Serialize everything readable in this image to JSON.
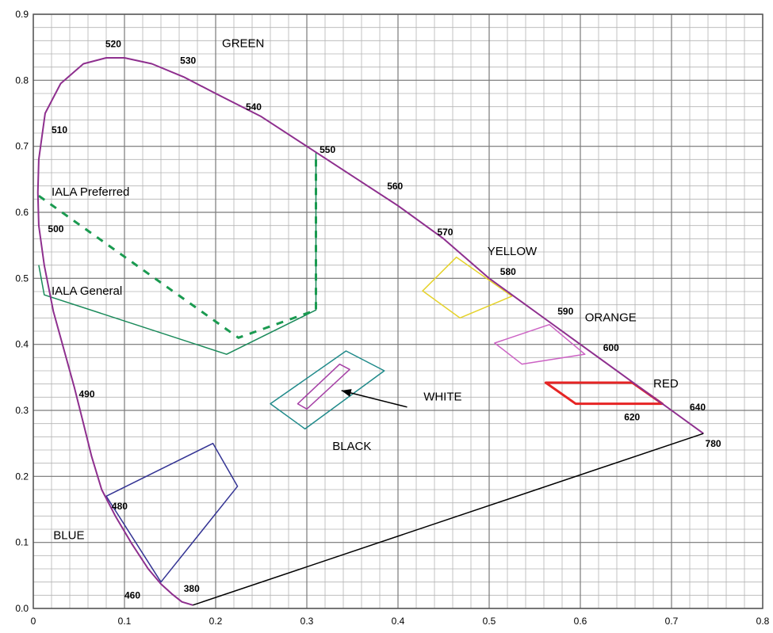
{
  "chart_data": {
    "type": "scatter",
    "title": "",
    "xlabel": "",
    "ylabel": "",
    "xlim": [
      0,
      0.8
    ],
    "ylim": [
      0,
      0.9
    ],
    "grid": true,
    "x_major_ticks": [
      {
        "value": 0,
        "label": "0"
      },
      {
        "value": 0.1,
        "label": "0.1"
      },
      {
        "value": 0.2,
        "label": "0.2"
      },
      {
        "value": 0.3,
        "label": "0.3"
      },
      {
        "value": 0.4,
        "label": "0.4"
      },
      {
        "value": 0.5,
        "label": "0.5"
      },
      {
        "value": 0.6,
        "label": "0.6"
      },
      {
        "value": 0.7,
        "label": "0.7"
      },
      {
        "value": 0.8,
        "label": "0.8"
      }
    ],
    "y_major_ticks": [
      {
        "value": 0,
        "label": "0.0"
      },
      {
        "value": 0.1,
        "label": "0.1"
      },
      {
        "value": 0.2,
        "label": "0.2"
      },
      {
        "value": 0.3,
        "label": "0.3"
      },
      {
        "value": 0.4,
        "label": "0.4"
      },
      {
        "value": 0.5,
        "label": "0.5"
      },
      {
        "value": 0.6,
        "label": "0.6"
      },
      {
        "value": 0.7,
        "label": "0.7"
      },
      {
        "value": 0.8,
        "label": "0.8"
      },
      {
        "value": 0.9,
        "label": "0.9"
      }
    ],
    "minor_step": 0.02,
    "spectral_locus": {
      "color": "#8e2f8e",
      "points": [
        [
          0.175,
          0.005
        ],
        [
          0.163,
          0.01
        ],
        [
          0.152,
          0.022
        ],
        [
          0.14,
          0.037
        ],
        [
          0.126,
          0.06
        ],
        [
          0.108,
          0.098
        ],
        [
          0.09,
          0.14
        ],
        [
          0.075,
          0.18
        ],
        [
          0.064,
          0.23
        ],
        [
          0.055,
          0.28
        ],
        [
          0.045,
          0.335
        ],
        [
          0.034,
          0.39
        ],
        [
          0.022,
          0.45
        ],
        [
          0.012,
          0.52
        ],
        [
          0.006,
          0.58
        ],
        [
          0.005,
          0.63
        ],
        [
          0.006,
          0.68
        ],
        [
          0.013,
          0.75
        ],
        [
          0.03,
          0.795
        ],
        [
          0.055,
          0.825
        ],
        [
          0.08,
          0.834
        ],
        [
          0.1,
          0.834
        ],
        [
          0.13,
          0.825
        ],
        [
          0.165,
          0.805
        ],
        [
          0.2,
          0.78
        ],
        [
          0.25,
          0.745
        ],
        [
          0.3,
          0.7
        ],
        [
          0.35,
          0.655
        ],
        [
          0.4,
          0.61
        ],
        [
          0.45,
          0.56
        ],
        [
          0.5,
          0.5
        ],
        [
          0.55,
          0.45
        ],
        [
          0.6,
          0.4
        ],
        [
          0.65,
          0.35
        ],
        [
          0.7,
          0.3
        ],
        [
          0.735,
          0.265
        ]
      ]
    },
    "purple_line": {
      "color": "#000000",
      "points": [
        [
          0.175,
          0.005
        ],
        [
          0.735,
          0.265
        ]
      ]
    },
    "wavelength_labels": [
      {
        "text": "380",
        "x": 0.165,
        "y": 0.025
      },
      {
        "text": "460",
        "x": 0.1,
        "y": 0.015
      },
      {
        "text": "480",
        "x": 0.086,
        "y": 0.15
      },
      {
        "text": "490",
        "x": 0.05,
        "y": 0.32
      },
      {
        "text": "500",
        "x": 0.016,
        "y": 0.57
      },
      {
        "text": "510",
        "x": 0.02,
        "y": 0.72
      },
      {
        "text": "520",
        "x": 0.079,
        "y": 0.85
      },
      {
        "text": "530",
        "x": 0.161,
        "y": 0.825
      },
      {
        "text": "540",
        "x": 0.233,
        "y": 0.755
      },
      {
        "text": "550",
        "x": 0.314,
        "y": 0.69
      },
      {
        "text": "560",
        "x": 0.388,
        "y": 0.635
      },
      {
        "text": "570",
        "x": 0.443,
        "y": 0.565
      },
      {
        "text": "580",
        "x": 0.512,
        "y": 0.505
      },
      {
        "text": "590",
        "x": 0.575,
        "y": 0.445
      },
      {
        "text": "600",
        "x": 0.625,
        "y": 0.39
      },
      {
        "text": "620",
        "x": 0.648,
        "y": 0.285
      },
      {
        "text": "640",
        "x": 0.72,
        "y": 0.3
      },
      {
        "text": "780",
        "x": 0.737,
        "y": 0.245
      }
    ],
    "region_labels": [
      {
        "text": "GREEN",
        "x": 0.207,
        "y": 0.85
      },
      {
        "text": "IALA Preferred",
        "x": 0.02,
        "y": 0.625
      },
      {
        "text": "IALA General",
        "x": 0.02,
        "y": 0.475
      },
      {
        "text": "YELLOW",
        "x": 0.498,
        "y": 0.535
      },
      {
        "text": "ORANGE",
        "x": 0.605,
        "y": 0.435
      },
      {
        "text": "RED",
        "x": 0.68,
        "y": 0.335
      },
      {
        "text": "WHITE",
        "x": 0.428,
        "y": 0.315
      },
      {
        "text": "BLACK",
        "x": 0.328,
        "y": 0.24
      },
      {
        "text": "BLUE",
        "x": 0.022,
        "y": 0.105
      }
    ],
    "regions": [
      {
        "label": "GREEN",
        "color": "#1a8a5a",
        "dashed": false,
        "width": 1.5,
        "points": [
          [
            0.006,
            0.52
          ],
          [
            0.012,
            0.475
          ],
          [
            0.212,
            0.385
          ],
          [
            0.31,
            0.452
          ],
          [
            0.31,
            0.69
          ]
        ]
      },
      {
        "label": "IALA Preferred",
        "color": "#1a9a50",
        "dashed": true,
        "width": 3,
        "points": [
          [
            0.006,
            0.625
          ],
          [
            0.225,
            0.41
          ],
          [
            0.31,
            0.452
          ],
          [
            0.31,
            0.69
          ]
        ]
      },
      {
        "label": "YELLOW",
        "color": "#e5d22a",
        "dashed": false,
        "width": 1.5,
        "points": [
          [
            0.464,
            0.532
          ],
          [
            0.427,
            0.481
          ],
          [
            0.468,
            0.44
          ],
          [
            0.525,
            0.473
          ]
        ]
      },
      {
        "label": "ORANGE",
        "color": "#cc62c4",
        "dashed": false,
        "width": 1.5,
        "points": [
          [
            0.566,
            0.43
          ],
          [
            0.506,
            0.402
          ],
          [
            0.536,
            0.37
          ],
          [
            0.605,
            0.385
          ]
        ]
      },
      {
        "label": "RED",
        "color": "#e62424",
        "dashed": false,
        "width": 3,
        "points": [
          [
            0.562,
            0.342
          ],
          [
            0.657,
            0.342
          ],
          [
            0.69,
            0.31
          ],
          [
            0.631,
            0.31
          ],
          [
            0.595,
            0.31
          ]
        ]
      },
      {
        "label": "WHITE",
        "color": "#a640a6",
        "dashed": false,
        "width": 1.5,
        "points": [
          [
            0.29,
            0.31
          ],
          [
            0.336,
            0.37
          ],
          [
            0.347,
            0.362
          ],
          [
            0.3,
            0.302
          ]
        ]
      },
      {
        "label": "BLACK",
        "color": "#1f8a8a",
        "dashed": false,
        "width": 1.5,
        "points": [
          [
            0.26,
            0.31
          ],
          [
            0.343,
            0.39
          ],
          [
            0.385,
            0.36
          ],
          [
            0.298,
            0.272
          ]
        ]
      },
      {
        "label": "BLUE",
        "color": "#343494",
        "dashed": false,
        "width": 1.5,
        "points": [
          [
            0.08,
            0.17
          ],
          [
            0.197,
            0.25
          ],
          [
            0.224,
            0.185
          ],
          [
            0.14,
            0.04
          ]
        ]
      }
    ],
    "arrow": {
      "from": [
        0.41,
        0.305
      ],
      "to": [
        0.338,
        0.33
      ],
      "color": "#000000"
    }
  }
}
